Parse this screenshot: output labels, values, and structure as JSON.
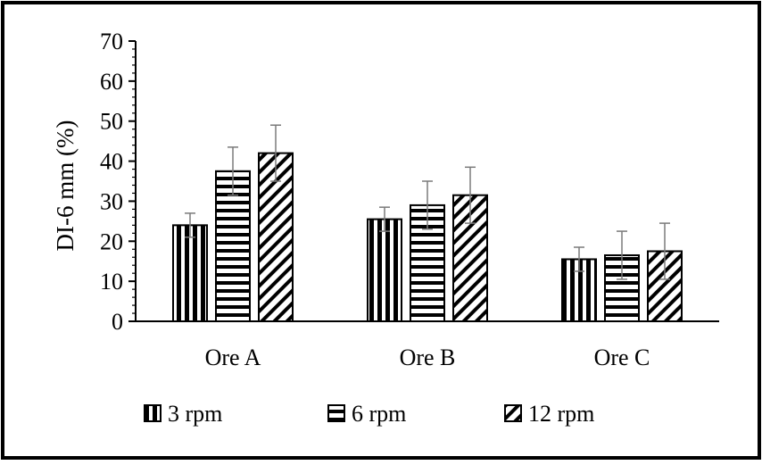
{
  "chart_data": {
    "type": "bar",
    "title": "",
    "xlabel": "",
    "ylabel": "DI-6 mm (%)",
    "ylim": [
      0,
      70
    ],
    "yticks": [
      "0",
      "10",
      "20",
      "30",
      "40",
      "50",
      "60",
      "70"
    ],
    "categories": [
      "Ore A",
      "Ore B",
      "Ore C"
    ],
    "series": [
      {
        "name": "3 rpm",
        "pattern": "vertical-stripes",
        "values": [
          24,
          25.5,
          15.5
        ],
        "errors": [
          3,
          3,
          3
        ]
      },
      {
        "name": "6 rpm",
        "pattern": "horizontal-stripes",
        "values": [
          37.5,
          29,
          16.5
        ],
        "errors": [
          6,
          6,
          6
        ]
      },
      {
        "name": "12 rpm",
        "pattern": "diagonal-stripes",
        "values": [
          42,
          31.5,
          17.5
        ],
        "errors": [
          7,
          7,
          7
        ]
      }
    ],
    "legend_position": "bottom",
    "grid": false
  }
}
